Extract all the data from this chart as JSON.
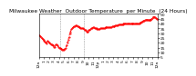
{
  "title": "Milwaukee Weather  Outdoor Temperature  per Minute  (24 Hours)",
  "line_color": "#ff0000",
  "bg_color": "#ffffff",
  "vline_color": "#888888",
  "vline_positions": [
    0.175,
    0.375
  ],
  "y_min": 5,
  "y_max": 50,
  "y_ticks": [
    5,
    10,
    15,
    20,
    25,
    30,
    35,
    40,
    45,
    50
  ],
  "x_tick_labels": [
    "12a",
    "1",
    "2",
    "3",
    "4",
    "5",
    "6",
    "7",
    "8",
    "9",
    "10",
    "11",
    "12p",
    "1",
    "2",
    "3",
    "4",
    "5",
    "6",
    "7",
    "8",
    "9",
    "10",
    "11",
    "12a"
  ],
  "temp_profile": [
    28,
    27,
    26,
    25,
    24,
    23,
    22,
    21,
    20,
    19,
    22,
    21,
    20,
    19,
    18,
    18,
    17,
    17,
    16,
    16,
    18,
    18,
    17,
    16,
    15,
    15,
    14,
    14,
    13,
    13,
    13,
    14,
    15,
    17,
    20,
    23,
    26,
    30,
    32,
    34,
    35,
    36,
    37,
    37,
    38,
    38,
    37,
    37,
    36,
    36,
    35,
    35,
    35,
    35,
    34,
    33,
    33,
    32,
    32,
    32,
    33,
    33,
    34,
    35,
    35,
    36,
    36,
    35,
    35,
    35,
    34,
    34,
    34,
    34,
    35,
    35,
    35,
    35,
    35,
    35,
    36,
    36,
    36,
    36,
    36,
    36,
    36,
    36,
    37,
    37,
    37,
    37,
    38,
    38,
    38,
    38,
    39,
    39,
    39,
    39,
    39,
    39,
    40,
    40,
    40,
    40,
    40,
    40,
    40,
    40,
    40,
    40,
    40,
    40,
    40,
    40,
    40,
    40,
    40,
    40,
    40,
    40,
    41,
    41,
    42,
    42,
    43,
    43,
    44,
    44,
    44,
    44,
    44,
    44,
    44,
    44,
    45,
    46,
    47,
    47,
    47,
    46,
    45,
    45
  ],
  "linestyle": "--",
  "linewidth": 0.6,
  "markersize": 1.0,
  "title_fontsize": 4.2,
  "tick_fontsize": 3.2
}
